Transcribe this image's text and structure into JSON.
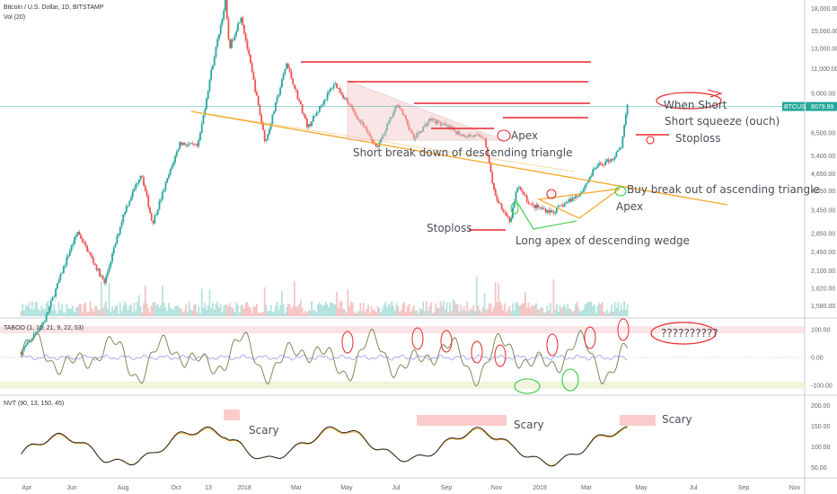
{
  "header": {
    "symbol": "Bitcoin / U.S. Dollar, 1D, BITSTAMP",
    "volume": "Vol (20)"
  },
  "colors": {
    "up": "#26a69a",
    "down": "#ef5350",
    "trend": "#f5a623",
    "annot": "#e8262b",
    "green": "#2ecc40",
    "osc": "#7e8a5a",
    "purple": "#9ea2f0",
    "axis": "#e0e3eb"
  },
  "chart_data": [
    {
      "type": "candlestick",
      "title": "Bitcoin / U.S. Dollar, 1D, BITSTAMP",
      "y_scale": "log",
      "ylim": [
        1450,
        18500
      ],
      "y_ticks": [
        18000,
        15000,
        13000,
        11000,
        9000,
        8000,
        6500,
        5400,
        4650,
        4050,
        3450,
        2850,
        2450,
        2100,
        1820,
        1580
      ],
      "last_price": {
        "label": "BTCUSD",
        "value": "8079.99"
      },
      "x_ticks": [
        "Apr",
        "Jun",
        "Aug",
        "Oct",
        "13",
        "2018",
        "Mar",
        "May",
        "Jul",
        "Sep",
        "Nov",
        "2019",
        "Mar",
        "May",
        "Jul",
        "Sep",
        "Nov"
      ],
      "close_path": [
        [
          "2017-04-01",
          1080
        ],
        [
          "2017-05-01",
          1400
        ],
        [
          "2017-06-01",
          2450
        ],
        [
          "2017-06-12",
          2900
        ],
        [
          "2017-07-16",
          1900
        ],
        [
          "2017-08-10",
          3400
        ],
        [
          "2017-09-01",
          4700
        ],
        [
          "2017-09-15",
          3100
        ],
        [
          "2017-10-20",
          6000
        ],
        [
          "2017-11-12",
          5800
        ],
        [
          "2017-11-29",
          10800
        ],
        [
          "2017-12-17",
          19000
        ],
        [
          "2017-12-22",
          13000
        ],
        [
          "2018-01-06",
          17000
        ],
        [
          "2018-02-06",
          6000
        ],
        [
          "2018-03-05",
          11500
        ],
        [
          "2018-04-01",
          6800
        ],
        [
          "2018-05-05",
          9800
        ],
        [
          "2018-06-28",
          5800
        ],
        [
          "2018-07-25",
          8300
        ],
        [
          "2018-08-14",
          6200
        ],
        [
          "2018-09-04",
          7300
        ],
        [
          "2018-10-15",
          6400
        ],
        [
          "2018-11-12",
          6300
        ],
        [
          "2018-11-25",
          3900
        ],
        [
          "2018-12-15",
          3150
        ],
        [
          "2018-12-24",
          4200
        ],
        [
          "2019-01-10",
          3600
        ],
        [
          "2019-02-07",
          3400
        ],
        [
          "2019-03-15",
          4000
        ],
        [
          "2019-04-02",
          4900
        ],
        [
          "2019-04-25",
          5300
        ],
        [
          "2019-05-05",
          5800
        ],
        [
          "2019-05-13",
          8080
        ]
      ],
      "volume": "Vol (20)",
      "annotations": [
        "Apex",
        "Short break down of descending triangle",
        "Stoploss",
        "Long apex of descending wedge",
        "Buy break out of ascending triangle",
        "Apex",
        "When Short",
        "Short squeeze (ouch)",
        "Stoploss"
      ]
    },
    {
      "type": "line",
      "title": "TABOO (1, 10, 21, 9, 22, 53)",
      "ylim": [
        -130,
        130
      ],
      "y_ticks": [
        100,
        0,
        -100
      ],
      "annotations": [
        "??????????"
      ]
    },
    {
      "type": "line",
      "title": "NVT (90, 13, 150, 45)",
      "ylim": [
        30,
        220
      ],
      "y_ticks": [
        200,
        150,
        100,
        50
      ],
      "annotations": [
        "Scary",
        "Scary",
        "Scary"
      ]
    }
  ]
}
